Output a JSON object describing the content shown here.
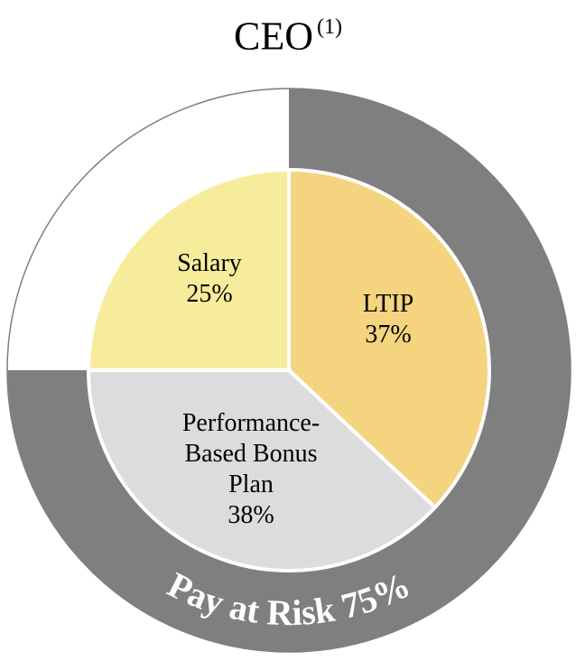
{
  "chart_data": {
    "type": "pie",
    "title": "CEO",
    "title_footnote": "(1)",
    "inner_slices": [
      {
        "label_lines": [
          "LTIP",
          "37%"
        ],
        "value": 37,
        "color": "#F5D47F"
      },
      {
        "label_lines": [
          "Performance-",
          "Based Bonus",
          "Plan",
          "38%"
        ],
        "value": 38,
        "color": "#DCDCDC"
      },
      {
        "label_lines": [
          "Salary",
          "25%"
        ],
        "value": 25,
        "color": "#F7EC9C"
      }
    ],
    "outer_ring": [
      {
        "label": "Pay at Risk 75%",
        "value": 75,
        "color": "#7F7F7F"
      },
      {
        "label": "",
        "value": 25,
        "color": "#FFFFFF"
      }
    ]
  }
}
